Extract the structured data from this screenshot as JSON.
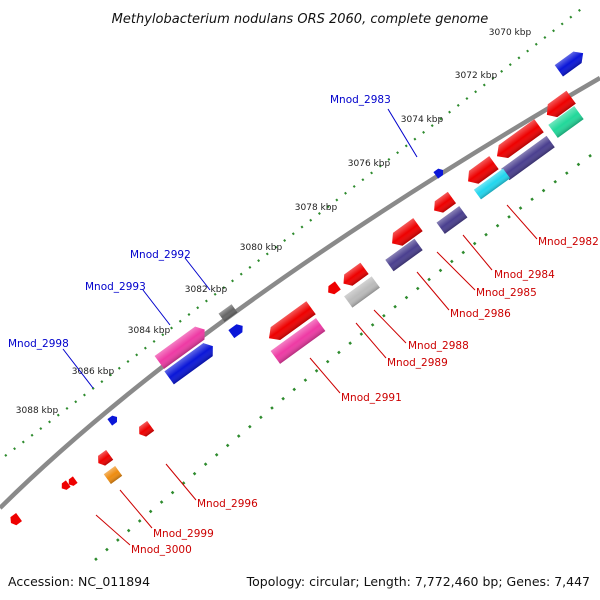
{
  "title": "Methylobacterium nodulans ORS 2060, complete genome",
  "footer": {
    "accession": "Accession: NC_011894",
    "summary": "Topology: circular; Length: 7,772,460 bp; Genes: 7,447"
  },
  "colors": {
    "backbone": "#808080",
    "tick": "#2e8b2e",
    "label_plus": "#0000cc",
    "label_minus": "#cc0000",
    "red": "#ee0000",
    "blue": "#0a16d8",
    "magenta": "#ee3aa4",
    "purple": "#4a3f8f",
    "cyan": "#22d6ee",
    "green": "#22d89a",
    "gray": "#bbbbbb",
    "darkgray": "#666666",
    "orange": "#ee8c10"
  },
  "kbp_marks": [
    "3070 kbp",
    "3072 kbp",
    "3074 kbp",
    "3076 kbp",
    "3078 kbp",
    "3080 kbp",
    "3082 kbp",
    "3084 kbp",
    "3086 kbp",
    "3088 kbp"
  ],
  "gene_labels": {
    "plus": [
      "Mnod_2983",
      "Mnod_2992",
      "Mnod_2993",
      "Mnod_2998"
    ],
    "minus": [
      "Mnod_2982",
      "Mnod_2984",
      "Mnod_2985",
      "Mnod_2986",
      "Mnod_2988",
      "Mnod_2989",
      "Mnod_2991",
      "Mnod_2996",
      "Mnod_2999",
      "Mnod_3000"
    ]
  }
}
